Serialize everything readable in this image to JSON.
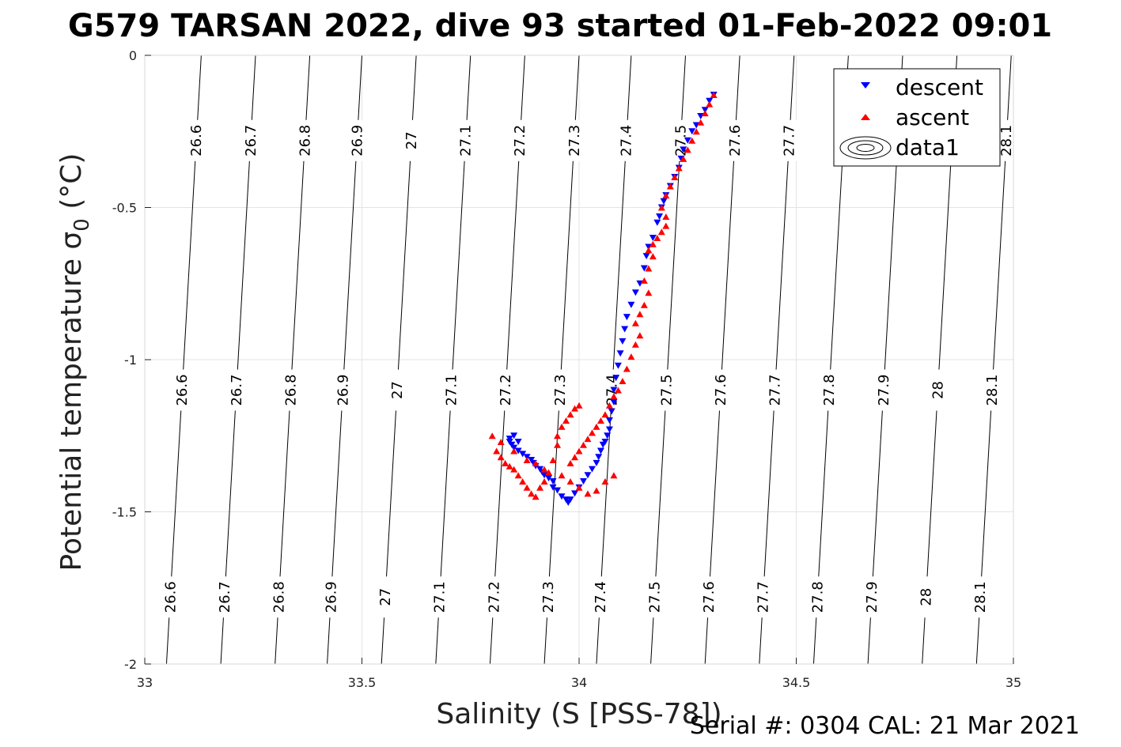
{
  "chart_data": {
    "type": "scatter",
    "title": "G579 TARSAN 2022, dive 93 started 01-Feb-2022 09:01",
    "xlabel": "Salinity (S [PSS-78])",
    "ylabel": "Potential temperature σ",
    "ylabel_sub": "0",
    "ylabel_unit": " (°C)",
    "xlim": [
      33,
      35
    ],
    "ylim": [
      -2,
      0
    ],
    "x_ticks": [
      33,
      33.5,
      34,
      34.5,
      35
    ],
    "x_tick_labels": [
      "33",
      "33.5",
      "34",
      "34.5",
      "35"
    ],
    "y_ticks": [
      0,
      -0.5,
      -1,
      -1.5,
      -2
    ],
    "y_tick_labels": [
      "0",
      "-0.5",
      "-1",
      "-1.5",
      "-2"
    ],
    "grid": true,
    "legend_position": "top-right",
    "legend": [
      "descent",
      "ascent",
      "data1"
    ],
    "contour_levels": [
      "26.6",
      "26.7",
      "26.8",
      "26.9",
      "27",
      "27.1",
      "27.2",
      "27.3",
      "27.4",
      "27.5",
      "27.6",
      "27.7",
      "27.8",
      "27.9",
      "28",
      "28.1"
    ],
    "contour_lines": [
      {
        "level": "26.6",
        "x_at_top": 33.13,
        "x_at_bottom": 33.05
      },
      {
        "level": "26.7",
        "x_at_top": 33.255,
        "x_at_bottom": 33.175
      },
      {
        "level": "26.8",
        "x_at_top": 33.38,
        "x_at_bottom": 33.3
      },
      {
        "level": "26.9",
        "x_at_top": 33.5,
        "x_at_bottom": 33.42
      },
      {
        "level": "27",
        "x_at_top": 33.625,
        "x_at_bottom": 33.545
      },
      {
        "level": "27.1",
        "x_at_top": 33.75,
        "x_at_bottom": 33.67
      },
      {
        "level": "27.2",
        "x_at_top": 33.875,
        "x_at_bottom": 33.795
      },
      {
        "level": "27.3",
        "x_at_top": 34.0,
        "x_at_bottom": 33.92
      },
      {
        "level": "27.4",
        "x_at_top": 34.12,
        "x_at_bottom": 34.04
      },
      {
        "level": "27.5",
        "x_at_top": 34.245,
        "x_at_bottom": 34.165
      },
      {
        "level": "27.6",
        "x_at_top": 34.37,
        "x_at_bottom": 34.29
      },
      {
        "level": "27.7",
        "x_at_top": 34.495,
        "x_at_bottom": 34.415
      },
      {
        "level": "27.8",
        "x_at_top": 34.62,
        "x_at_bottom": 34.54
      },
      {
        "level": "27.9",
        "x_at_top": 34.745,
        "x_at_bottom": 34.665
      },
      {
        "level": "28",
        "x_at_top": 34.87,
        "x_at_bottom": 34.79
      },
      {
        "level": "28.1",
        "x_at_top": 34.995,
        "x_at_bottom": 34.915
      }
    ],
    "contour_label_rows_theta": [
      -0.28,
      -1.1,
      -1.78
    ],
    "contour_top_labels_shown": [
      "26.6",
      "26.7",
      "26.8",
      "26.9",
      "27",
      "27.1",
      "27.2",
      "27.3",
      "27.4",
      "27.5",
      "27.6",
      "27.7",
      "28.1"
    ],
    "series": [
      {
        "name": "descent",
        "color": "#0000ff",
        "marker": "triangle-down",
        "x": [
          34.31,
          34.3,
          34.29,
          34.28,
          34.27,
          34.26,
          34.25,
          34.24,
          34.235,
          34.23,
          34.22,
          34.21,
          34.2,
          34.195,
          34.19,
          34.185,
          34.18,
          34.17,
          34.16,
          34.155,
          34.15,
          34.14,
          34.13,
          34.12,
          34.11,
          34.105,
          34.1,
          34.095,
          34.09,
          34.085,
          34.08,
          34.08,
          34.075,
          34.07,
          34.07,
          34.065,
          34.06,
          34.055,
          34.05,
          34.045,
          34.04,
          34.03,
          34.02,
          34.01,
          34.0,
          33.99,
          33.98,
          33.975,
          33.97,
          33.96,
          33.95,
          33.94,
          33.94,
          33.93,
          33.92,
          33.915,
          33.91,
          33.9,
          33.895,
          33.89,
          33.88,
          33.87,
          33.86,
          33.85,
          33.845,
          33.84,
          33.84,
          33.85,
          33.86
        ],
        "y": [
          -0.13,
          -0.15,
          -0.18,
          -0.2,
          -0.23,
          -0.25,
          -0.28,
          -0.31,
          -0.34,
          -0.37,
          -0.4,
          -0.43,
          -0.46,
          -0.48,
          -0.5,
          -0.53,
          -0.55,
          -0.6,
          -0.63,
          -0.66,
          -0.7,
          -0.75,
          -0.78,
          -0.82,
          -0.86,
          -0.9,
          -0.94,
          -0.98,
          -1.02,
          -1.06,
          -1.1,
          -1.14,
          -1.17,
          -1.2,
          -1.23,
          -1.25,
          -1.27,
          -1.28,
          -1.3,
          -1.32,
          -1.34,
          -1.36,
          -1.38,
          -1.4,
          -1.42,
          -1.44,
          -1.46,
          -1.47,
          -1.46,
          -1.45,
          -1.43,
          -1.42,
          -1.4,
          -1.39,
          -1.38,
          -1.37,
          -1.36,
          -1.35,
          -1.34,
          -1.33,
          -1.32,
          -1.31,
          -1.3,
          -1.29,
          -1.28,
          -1.27,
          -1.26,
          -1.25,
          -1.27
        ]
      },
      {
        "name": "ascent",
        "color": "#ff0000",
        "marker": "triangle-up",
        "x": [
          34.31,
          34.3,
          34.29,
          34.28,
          34.27,
          34.26,
          34.25,
          34.24,
          34.23,
          34.22,
          34.21,
          34.2,
          34.19,
          34.2,
          34.2,
          34.19,
          34.18,
          34.17,
          34.16,
          34.17,
          34.16,
          34.15,
          34.16,
          34.15,
          34.14,
          34.13,
          34.14,
          34.13,
          34.12,
          34.11,
          34.1,
          34.09,
          34.08,
          34.07,
          34.06,
          34.05,
          34.04,
          34.03,
          34.02,
          34.01,
          34.0,
          33.99,
          33.98,
          33.99,
          34.0,
          33.98,
          33.97,
          33.96,
          33.95,
          33.95,
          33.94,
          33.93,
          33.92,
          33.91,
          33.9,
          33.89,
          33.88,
          33.87,
          33.86,
          33.85,
          33.84,
          33.83,
          33.82,
          33.81,
          33.8,
          33.82,
          33.85,
          33.88,
          33.9,
          33.92,
          33.96,
          33.98,
          34.0,
          34.02,
          34.04,
          34.06,
          34.08
        ],
        "y": [
          -0.13,
          -0.16,
          -0.19,
          -0.22,
          -0.25,
          -0.28,
          -0.31,
          -0.34,
          -0.37,
          -0.4,
          -0.43,
          -0.46,
          -0.5,
          -0.53,
          -0.56,
          -0.58,
          -0.6,
          -0.62,
          -0.64,
          -0.66,
          -0.7,
          -0.74,
          -0.78,
          -0.82,
          -0.85,
          -0.88,
          -0.92,
          -0.95,
          -0.99,
          -1.03,
          -1.07,
          -1.1,
          -1.12,
          -1.15,
          -1.18,
          -1.2,
          -1.22,
          -1.24,
          -1.26,
          -1.28,
          -1.3,
          -1.32,
          -1.34,
          -1.16,
          -1.15,
          -1.18,
          -1.2,
          -1.22,
          -1.25,
          -1.28,
          -1.33,
          -1.37,
          -1.4,
          -1.42,
          -1.45,
          -1.44,
          -1.42,
          -1.4,
          -1.38,
          -1.36,
          -1.35,
          -1.34,
          -1.32,
          -1.3,
          -1.25,
          -1.27,
          -1.3,
          -1.33,
          -1.34,
          -1.36,
          -1.38,
          -1.4,
          -1.42,
          -1.44,
          -1.43,
          -1.4,
          -1.38
        ]
      }
    ],
    "footer": "Serial #: 0304  CAL: 21 Mar 2021"
  }
}
